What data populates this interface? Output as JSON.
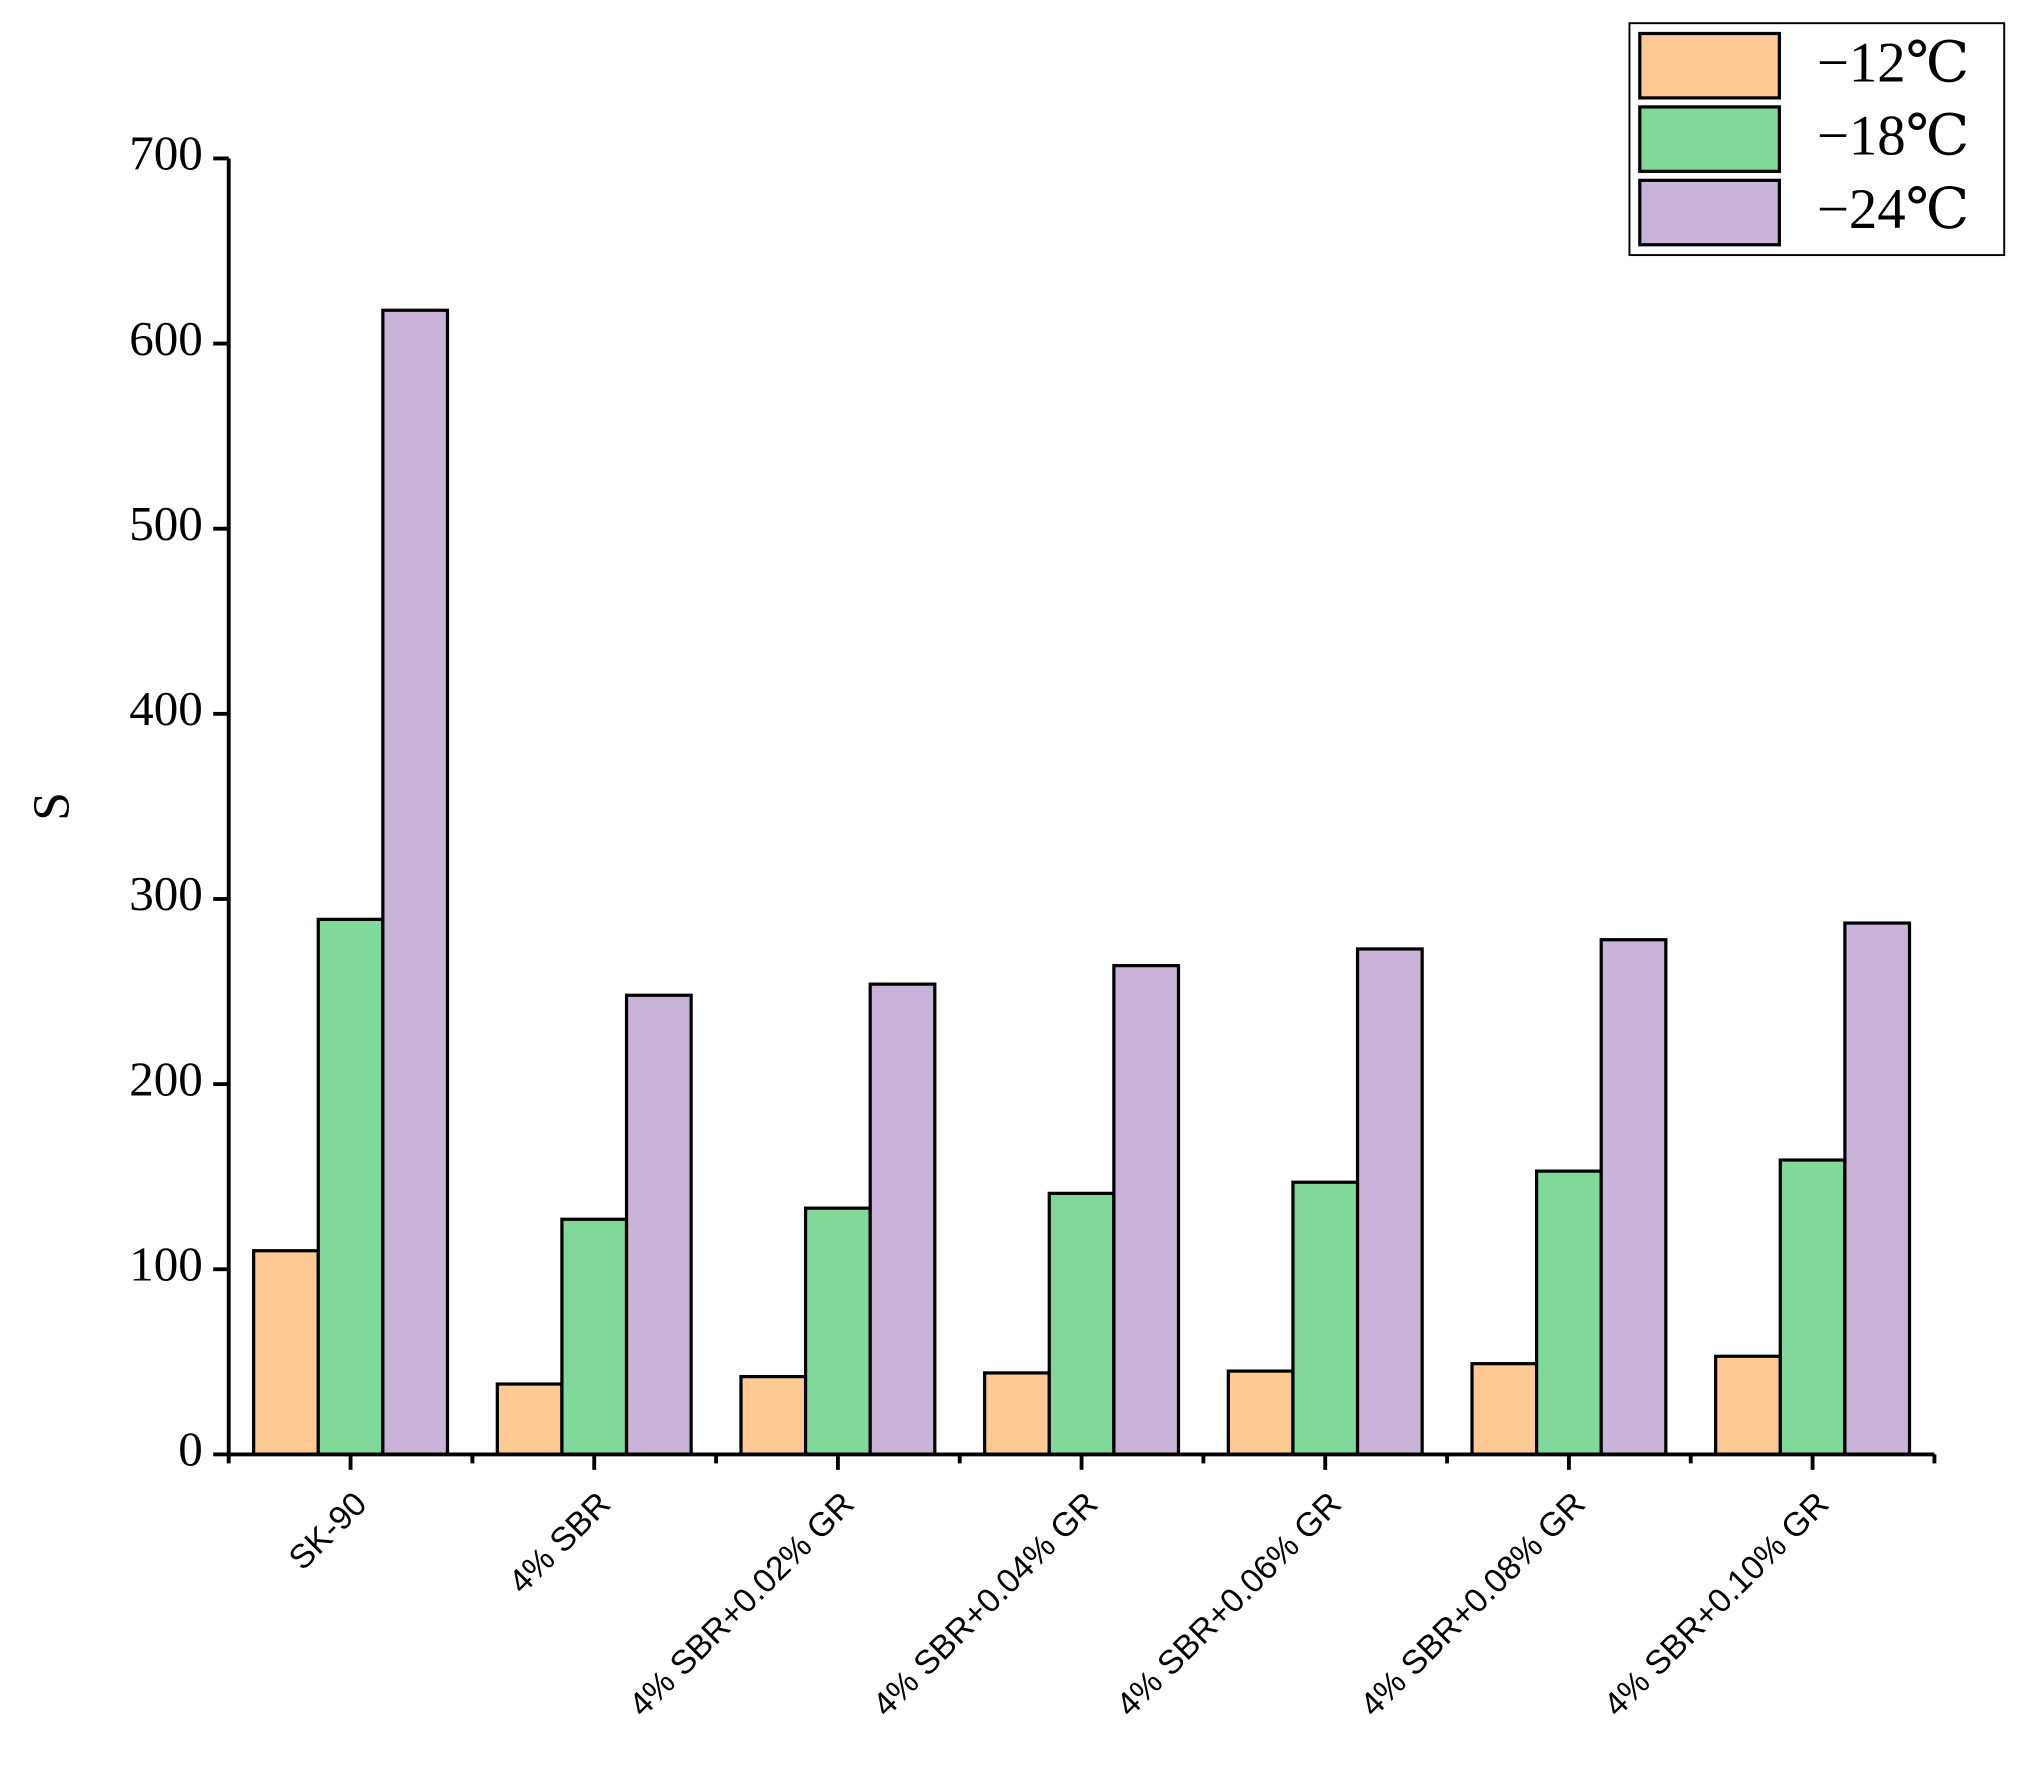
{
  "chart_data": {
    "type": "bar",
    "y_label": "S",
    "categories": [
      "SK-90",
      "4% SBR",
      "4% SBR+0.02% GR",
      "4% SBR+0.04% GR",
      "4% SBR+0.06% GR",
      "4% SBR+0.08% GR",
      "4% SBR+0.10% GR"
    ],
    "series": [
      {
        "name": "−12℃",
        "color": "#ffc993",
        "values": [
          110,
          38,
          42,
          44,
          45,
          49,
          53
        ]
      },
      {
        "name": "−18℃",
        "color": "#80d99b",
        "values": [
          289,
          127,
          133,
          141,
          147,
          153,
          159
        ]
      },
      {
        "name": "−24℃",
        "color": "#c9b3d9",
        "values": [
          618,
          248,
          254,
          264,
          273,
          278,
          287
        ]
      }
    ],
    "ylim": [
      0,
      700
    ],
    "yticks": [
      0,
      100,
      200,
      300,
      400,
      500,
      600,
      700
    ],
    "legend": "upper right"
  }
}
